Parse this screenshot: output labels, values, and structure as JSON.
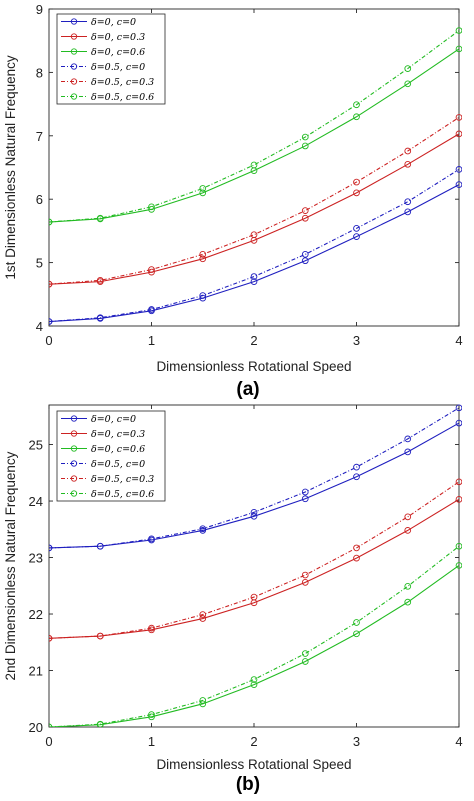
{
  "chart_data": [
    {
      "type": "line",
      "panel_label": "(a)",
      "xlabel": "Dimensionless Rotational Speed",
      "ylabel": "1st Dimensionless Natural Frequency",
      "xlim": [
        0,
        4
      ],
      "ylim": [
        4,
        9
      ],
      "xticks": [
        "0",
        "1",
        "2",
        "3",
        "4"
      ],
      "yticks": [
        "4",
        "5",
        "6",
        "7",
        "8",
        "9"
      ],
      "grid": false,
      "legend_position": "top-left",
      "x": [
        0,
        0.5,
        1,
        1.5,
        2,
        2.5,
        3,
        3.5,
        4
      ],
      "series": [
        {
          "name": "δ=0, c=0",
          "color": "#1f1fbf",
          "dash": "solid",
          "values": [
            4.07,
            4.12,
            4.24,
            4.44,
            4.7,
            5.03,
            5.41,
            5.8,
            6.23
          ]
        },
        {
          "name": "δ=0, c=0.3",
          "color": "#cc2222",
          "dash": "solid",
          "values": [
            4.66,
            4.7,
            4.85,
            5.06,
            5.35,
            5.7,
            6.1,
            6.55,
            7.03
          ]
        },
        {
          "name": "δ=0, c=0.6",
          "color": "#22bb22",
          "dash": "solid",
          "values": [
            5.64,
            5.69,
            5.84,
            6.1,
            6.45,
            6.84,
            7.3,
            7.82,
            8.37
          ]
        },
        {
          "name": "δ=0.5, c=0",
          "color": "#1f1fbf",
          "dash": "dashdot",
          "values": [
            4.07,
            4.13,
            4.26,
            4.48,
            4.78,
            5.13,
            5.54,
            5.96,
            6.47
          ]
        },
        {
          "name": "δ=0.5, c=0.3",
          "color": "#cc2222",
          "dash": "dashdot",
          "values": [
            4.66,
            4.72,
            4.89,
            5.13,
            5.44,
            5.82,
            6.27,
            6.76,
            7.29
          ]
        },
        {
          "name": "δ=0.5, c=0.6",
          "color": "#22bb22",
          "dash": "dashdot",
          "values": [
            5.64,
            5.7,
            5.88,
            6.17,
            6.54,
            6.98,
            7.49,
            8.06,
            8.66
          ]
        }
      ]
    },
    {
      "type": "line",
      "panel_label": "(b)",
      "xlabel": "Dimensionless Rotational Speed",
      "ylabel": "2nd Dimensionless Natural Frequency",
      "xlim": [
        0,
        4
      ],
      "ylim": [
        20,
        25.7
      ],
      "xticks": [
        "0",
        "1",
        "2",
        "3",
        "4"
      ],
      "yticks": [
        "20",
        "21",
        "22",
        "23",
        "24",
        "25"
      ],
      "grid": false,
      "legend_position": "top-left",
      "x": [
        0,
        0.5,
        1,
        1.5,
        2,
        2.5,
        3,
        3.5,
        4
      ],
      "series": [
        {
          "name": "δ=0, c=0",
          "color": "#1f1fbf",
          "dash": "solid",
          "values": [
            23.17,
            23.2,
            23.31,
            23.48,
            23.73,
            24.04,
            24.43,
            24.87,
            25.38
          ]
        },
        {
          "name": "δ=0, c=0.3",
          "color": "#cc2222",
          "dash": "solid",
          "values": [
            21.57,
            21.61,
            21.72,
            21.92,
            22.2,
            22.56,
            22.99,
            23.48,
            24.03
          ]
        },
        {
          "name": "δ=0, c=0.6",
          "color": "#22bb22",
          "dash": "solid",
          "values": [
            20.0,
            20.04,
            20.18,
            20.41,
            20.75,
            21.16,
            21.65,
            22.21,
            22.86
          ]
        },
        {
          "name": "δ=0.5, c=0",
          "color": "#1f1fbf",
          "dash": "dashdot",
          "values": [
            23.17,
            23.2,
            23.33,
            23.51,
            23.8,
            24.16,
            24.6,
            25.1,
            25.65
          ]
        },
        {
          "name": "δ=0.5, c=0.3",
          "color": "#cc2222",
          "dash": "dashdot",
          "values": [
            21.57,
            21.61,
            21.75,
            21.99,
            22.3,
            22.69,
            23.17,
            23.72,
            24.34
          ]
        },
        {
          "name": "δ=0.5, c=0.6",
          "color": "#22bb22",
          "dash": "dashdot",
          "values": [
            20.0,
            20.05,
            20.22,
            20.47,
            20.84,
            21.3,
            21.85,
            22.49,
            23.2
          ]
        }
      ]
    }
  ]
}
